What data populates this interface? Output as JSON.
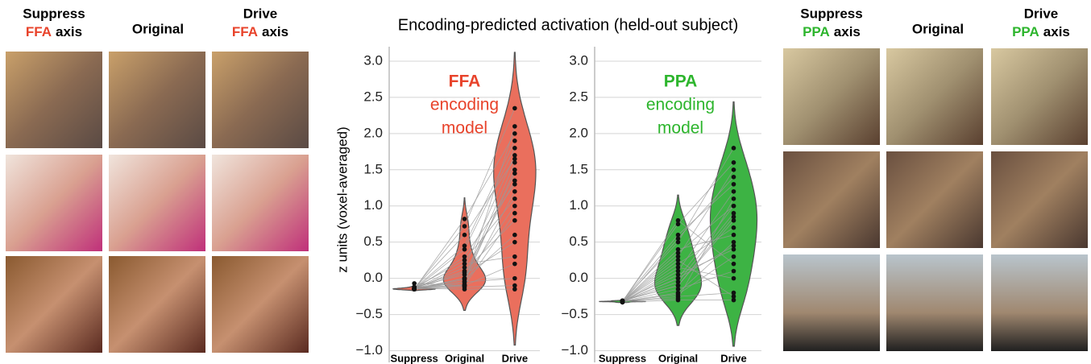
{
  "figure_title": "Encoding-predicted activation (held-out subject)",
  "left_panel": {
    "columns": [
      {
        "top": "Suppress",
        "accent": "FFA",
        "label": "axis"
      },
      {
        "top": "Original"
      },
      {
        "top": "Drive",
        "accent": "FFA",
        "label": "axis"
      }
    ]
  },
  "right_panel": {
    "columns": [
      {
        "top": "Suppress",
        "accent": "PPA",
        "label": "axis"
      },
      {
        "top": "Original"
      },
      {
        "top": "Drive",
        "accent": "PPA",
        "label": "axis"
      }
    ]
  },
  "chart_data": [
    {
      "type": "violin",
      "ylabel": "z units (voxel-averaged)",
      "annotation": [
        "FFA",
        "encoding",
        "model"
      ],
      "color": "#ea6f5d",
      "annotation_color": "#e8432b",
      "categories": [
        "Suppress",
        "Original",
        "Drive"
      ],
      "ylim": [
        -1.05,
        3.2
      ],
      "yticks": [
        {
          "value": -1.0,
          "label": "−1.0"
        },
        {
          "value": -0.5,
          "label": "−0.5"
        },
        {
          "value": 0.0,
          "label": "0.0"
        },
        {
          "value": 0.5,
          "label": "0.5"
        },
        {
          "value": 1.0,
          "label": "1.0"
        },
        {
          "value": 1.5,
          "label": "1.5"
        },
        {
          "value": 2.0,
          "label": "2.0"
        },
        {
          "value": 2.5,
          "label": "2.5"
        },
        {
          "value": 3.0,
          "label": "3.0"
        }
      ],
      "grid": true,
      "values": [
        [
          -0.15,
          -0.14,
          -0.15,
          -0.13,
          -0.15,
          -0.14,
          -0.15,
          -0.15,
          -0.12,
          -0.15,
          -0.14,
          -0.15,
          -0.07,
          -0.15,
          -0.14,
          -0.15,
          -0.13,
          -0.15,
          -0.14,
          -0.15,
          -0.15,
          -0.14,
          -0.12,
          -0.15
        ],
        [
          -0.1,
          -0.05,
          0.0,
          0.1,
          0.2,
          0.45,
          -0.08,
          -0.12,
          0.05,
          0.3,
          0.72,
          0.82,
          -0.1,
          0.15,
          0.0,
          -0.05,
          0.25,
          0.4,
          -0.15,
          -0.02,
          0.08,
          0.6,
          -0.1,
          0.0
        ],
        [
          1.2,
          1.5,
          1.6,
          0.8,
          0.3,
          1.9,
          2.1,
          -0.1,
          0.5,
          1.3,
          2.35,
          2.0,
          0.2,
          1.7,
          1.45,
          0.0,
          1.1,
          1.8,
          -0.15,
          0.6,
          1.35,
          1.65,
          0.9,
          1.0
        ]
      ]
    },
    {
      "type": "violin",
      "annotation": [
        "PPA",
        "encoding",
        "model"
      ],
      "color": "#3db344",
      "annotation_color": "#2db52d",
      "categories": [
        "Suppress",
        "Original",
        "Drive"
      ],
      "ylim": [
        -1.05,
        3.2
      ],
      "yticks": [
        {
          "value": -1.0,
          "label": "−1.0"
        },
        {
          "value": -0.5,
          "label": "−0.5"
        },
        {
          "value": 0.0,
          "label": "0.0"
        },
        {
          "value": 0.5,
          "label": "0.5"
        },
        {
          "value": 1.0,
          "label": "1.0"
        },
        {
          "value": 1.5,
          "label": "1.5"
        },
        {
          "value": 2.0,
          "label": "2.0"
        },
        {
          "value": 2.5,
          "label": "2.5"
        },
        {
          "value": 3.0,
          "label": "3.0"
        }
      ],
      "grid": true,
      "values": [
        [
          -0.32,
          -0.31,
          -0.32,
          -0.33,
          -0.32,
          -0.31,
          -0.32,
          -0.32,
          -0.33,
          -0.32,
          -0.31,
          -0.32,
          -0.32,
          -0.31,
          -0.32,
          -0.33,
          -0.32,
          -0.31,
          -0.32,
          -0.32,
          -0.31,
          -0.32,
          -0.33,
          -0.32
        ],
        [
          -0.2,
          -0.1,
          0.0,
          0.1,
          0.3,
          0.5,
          0.8,
          -0.25,
          -0.3,
          0.2,
          0.6,
          0.75,
          -0.15,
          0.05,
          -0.05,
          0.15,
          0.4,
          -0.28,
          0.25,
          0.0,
          -0.1,
          0.35,
          0.55,
          -0.22
        ],
        [
          0.5,
          0.8,
          1.0,
          1.2,
          1.5,
          1.8,
          0.2,
          -0.2,
          -0.3,
          0.7,
          1.3,
          1.6,
          0.1,
          0.4,
          0.9,
          0.0,
          0.6,
          1.1,
          -0.25,
          0.45,
          0.85,
          1.0,
          1.4,
          0.3
        ]
      ]
    }
  ]
}
